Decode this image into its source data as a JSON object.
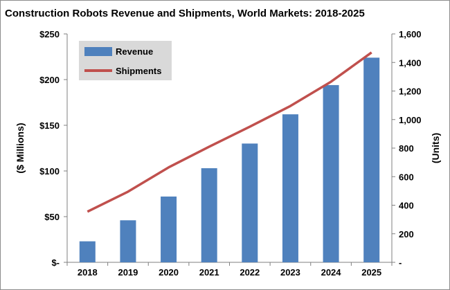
{
  "chart_data": {
    "type": "bar",
    "title": "Construction Robots Revenue and Shipments, World Markets: 2018-2025",
    "categories": [
      "2018",
      "2019",
      "2020",
      "2021",
      "2022",
      "2023",
      "2024",
      "2025"
    ],
    "series": [
      {
        "name": "Revenue",
        "type": "bar",
        "axis": "left",
        "color": "#4f81bd",
        "values": [
          23,
          46,
          72,
          103,
          130,
          162,
          194,
          224
        ]
      },
      {
        "name": "Shipments",
        "type": "line",
        "axis": "right",
        "color": "#c0504d",
        "values": [
          355,
          495,
          665,
          810,
          950,
          1095,
          1265,
          1470
        ]
      }
    ],
    "ylabel": "($ Millions)",
    "y2label": "(Units)",
    "ylim": [
      0,
      250
    ],
    "y2lim": [
      0,
      1600
    ],
    "yticks": [
      "$-",
      "$50",
      "$100",
      "$150",
      "$200",
      "$250"
    ],
    "y2ticks": [
      "-",
      "200",
      "400",
      "600",
      "800",
      "1,000",
      "1,200",
      "1,400",
      "1,600"
    ],
    "grid": false,
    "legend_position": "top-left"
  }
}
